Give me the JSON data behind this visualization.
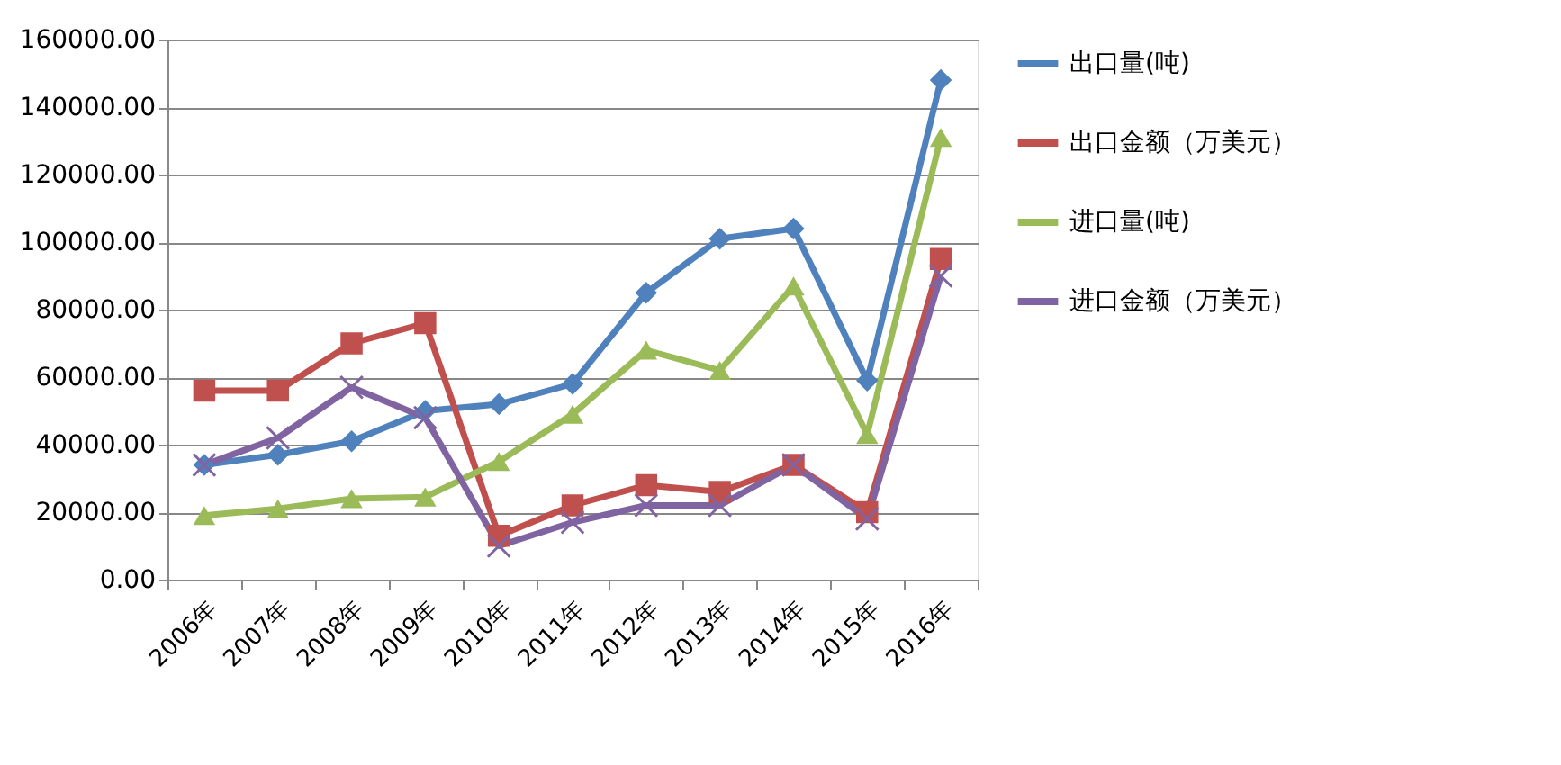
{
  "chart_data": {
    "type": "line",
    "categories": [
      "2006年",
      "2007年",
      "2008年",
      "2009年",
      "2010年",
      "2011年",
      "2012年",
      "2013年",
      "2014年",
      "2015年",
      "2016年"
    ],
    "series": [
      {
        "name": "出口量(吨)",
        "color": "#4f81bd",
        "marker": "diamond",
        "values": [
          34000,
          37000,
          41000,
          50000,
          52000,
          58000,
          85000,
          101000,
          104000,
          59000,
          148000
        ]
      },
      {
        "name": "出口金额（万美元）",
        "color": "#c0504d",
        "marker": "square",
        "values": [
          56000,
          56000,
          70000,
          76000,
          13000,
          22000,
          28000,
          26000,
          34000,
          20000,
          95000
        ]
      },
      {
        "name": "进口量(吨)",
        "color": "#9bbb59",
        "marker": "triangle",
        "values": [
          19000,
          21000,
          24000,
          24500,
          35000,
          49000,
          68000,
          62000,
          87000,
          43000,
          131000
        ]
      },
      {
        "name": "进口金额（万美元）",
        "color": "#8064a2",
        "marker": "cross",
        "values": [
          34000,
          42000,
          57000,
          48000,
          10000,
          17000,
          22000,
          22000,
          34000,
          18000,
          90000
        ]
      }
    ],
    "ylim": [
      0,
      160000
    ],
    "yticks": [
      {
        "value": 0,
        "label": "0.00"
      },
      {
        "value": 20000,
        "label": "20000.00"
      },
      {
        "value": 40000,
        "label": "40000.00"
      },
      {
        "value": 60000,
        "label": "60000.00"
      },
      {
        "value": 80000,
        "label": "80000.00"
      },
      {
        "value": 100000,
        "label": "100000.00"
      },
      {
        "value": 120000,
        "label": "120000.00"
      },
      {
        "value": 140000,
        "label": "140000.00"
      },
      {
        "value": 160000,
        "label": "160000.00"
      }
    ],
    "grid": "y",
    "legend": "right",
    "line_style": "solid"
  }
}
